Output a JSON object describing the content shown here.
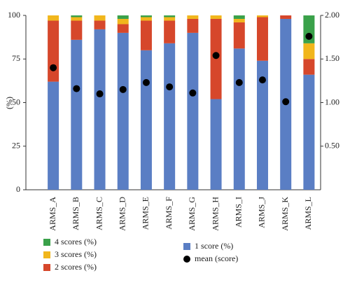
{
  "chart_data": {
    "type": "bar",
    "stacked": true,
    "y_label": "(%)",
    "categories": [
      "ARMS_A",
      "ARMS_B",
      "ARMS_C",
      "ARMS_D",
      "ARMS_E",
      "ARMS_F",
      "ARMS_G",
      "ARMS_H",
      "ARMS_I",
      "ARMS_J",
      "ARMS_K",
      "ARMS_L"
    ],
    "series": [
      {
        "name": "1 score (%)",
        "color": "#5a7ec4",
        "values": [
          62,
          86,
          92,
          90,
          80,
          84,
          90,
          52,
          81,
          74,
          98,
          66
        ]
      },
      {
        "name": "2 scores (%)",
        "color": "#d6472b",
        "values": [
          35,
          11,
          5,
          5,
          17,
          13,
          8,
          46,
          15,
          25,
          2,
          9
        ]
      },
      {
        "name": "3 scores (%)",
        "color": "#f1b61c",
        "values": [
          3,
          2,
          3,
          3,
          2,
          2,
          2,
          2,
          2,
          1,
          0,
          9
        ]
      },
      {
        "name": "4 scores (%)",
        "color": "#3aa14a",
        "values": [
          0,
          1,
          0,
          2,
          1,
          1,
          0,
          0,
          2,
          0,
          0,
          16
        ]
      },
      {
        "name": "mean (score)",
        "color": "#000000",
        "axis": "y2",
        "type": "scatter",
        "values": [
          1.4,
          1.16,
          1.1,
          1.15,
          1.23,
          1.18,
          1.11,
          1.54,
          1.23,
          1.26,
          1.01,
          1.76
        ]
      }
    ],
    "ylim": [
      0,
      100
    ],
    "yticks": [
      0,
      25,
      50,
      75,
      100
    ],
    "y2lim": [
      0,
      2
    ],
    "y2ticks": [
      {
        "value": 0.5,
        "label": "0.50"
      },
      {
        "value": 1,
        "label": "1.00"
      },
      {
        "value": 1.5,
        "label": "1.50"
      },
      {
        "value": 2,
        "label": "2.00"
      }
    ]
  }
}
